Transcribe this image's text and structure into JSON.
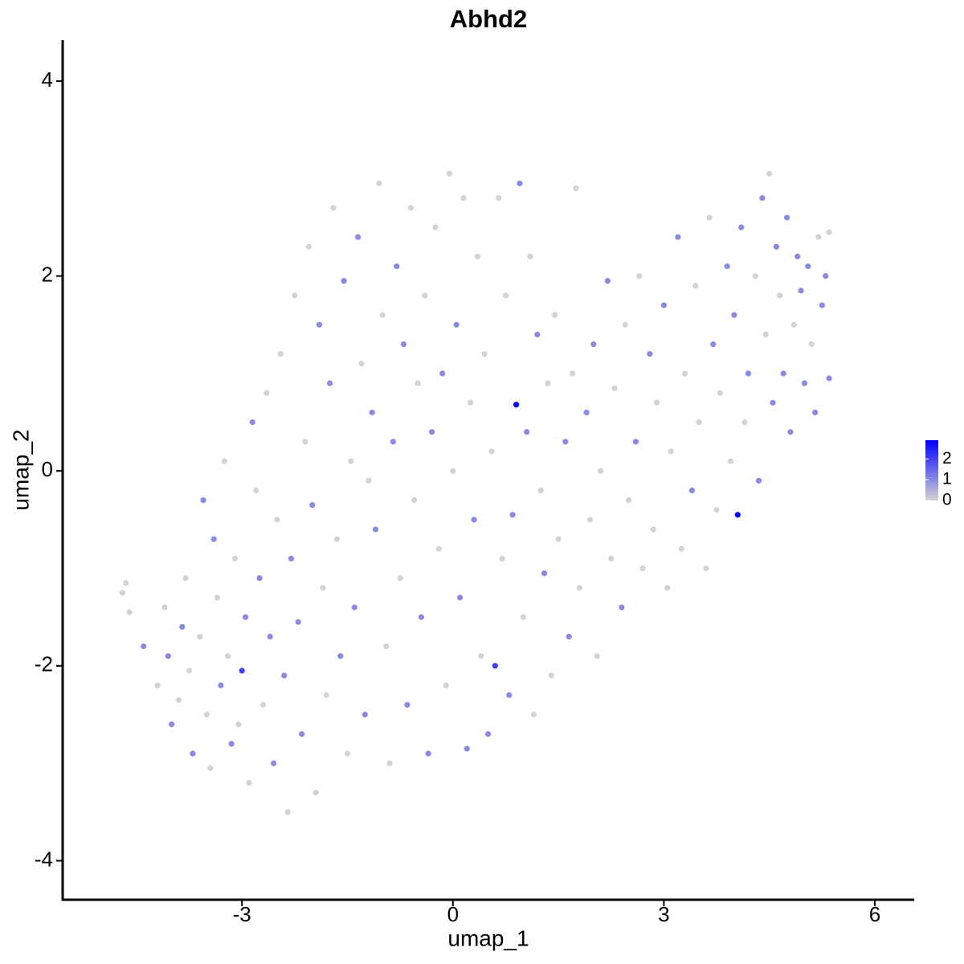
{
  "chart_data": {
    "type": "scatter",
    "title": "Abhd2",
    "xlabel": "umap_1",
    "ylabel": "umap_2",
    "xlim": [
      -5.55,
      6.56
    ],
    "ylim": [
      -4.4,
      4.42
    ],
    "xticks": [
      -3,
      0,
      3,
      6
    ],
    "yticks": [
      -4,
      -2,
      0,
      2,
      4
    ],
    "color_low": "#d3d3d3",
    "color_high": "#0000ff",
    "color_lim": [
      0,
      2.9
    ],
    "color_ticks": [
      0,
      1,
      2
    ],
    "x": [
      -4.7,
      -4.65,
      -4.6,
      -4.4,
      -4.2,
      -4.1,
      -4.05,
      -4.0,
      -3.9,
      -3.85,
      -3.8,
      -3.75,
      -3.7,
      -3.6,
      -3.55,
      -3.5,
      -3.45,
      -3.4,
      -3.35,
      -3.3,
      -3.25,
      -3.2,
      -3.15,
      -3.1,
      -3.05,
      -3.0,
      -2.95,
      -2.9,
      -2.85,
      -2.8,
      -2.75,
      -2.7,
      -2.65,
      -2.6,
      -2.55,
      -2.5,
      -2.45,
      -2.4,
      -2.35,
      -2.3,
      -2.25,
      -2.2,
      -2.15,
      -2.1,
      -2.05,
      -2.0,
      -1.95,
      -1.9,
      -1.85,
      -1.8,
      -1.75,
      -1.7,
      -1.65,
      -1.6,
      -1.55,
      -1.5,
      -1.45,
      -1.4,
      -1.35,
      -1.3,
      -1.25,
      -1.2,
      -1.15,
      -1.1,
      -1.05,
      -1.0,
      -0.95,
      -0.9,
      -0.85,
      -0.8,
      -0.75,
      -0.7,
      -0.65,
      -0.6,
      -0.55,
      -0.5,
      -0.45,
      -0.4,
      -0.35,
      -0.3,
      -0.25,
      -0.2,
      -0.15,
      -0.1,
      -0.05,
      0.0,
      0.05,
      0.1,
      0.15,
      0.2,
      0.25,
      0.3,
      0.35,
      0.4,
      0.45,
      0.5,
      0.55,
      0.6,
      0.65,
      0.7,
      0.75,
      0.8,
      0.85,
      0.9,
      0.95,
      1.0,
      1.05,
      1.1,
      1.15,
      1.2,
      1.25,
      1.3,
      1.35,
      1.4,
      1.45,
      1.5,
      1.6,
      1.65,
      1.7,
      1.75,
      1.8,
      1.9,
      1.95,
      2.0,
      2.05,
      2.1,
      2.2,
      2.25,
      2.3,
      2.4,
      2.45,
      2.5,
      2.6,
      2.65,
      2.7,
      2.8,
      2.85,
      2.9,
      3.0,
      3.05,
      3.1,
      3.2,
      3.25,
      3.3,
      3.4,
      3.45,
      3.5,
      3.6,
      3.65,
      3.7,
      3.75,
      3.8,
      3.9,
      3.95,
      4.0,
      4.05,
      4.1,
      4.15,
      4.2,
      4.3,
      4.35,
      4.4,
      4.45,
      4.5,
      4.55,
      4.6,
      4.65,
      4.7,
      4.75,
      4.8,
      4.85,
      4.9,
      4.95,
      5.0,
      5.05,
      5.1,
      5.15,
      5.2,
      5.25,
      5.3,
      5.35,
      5.35
    ],
    "y": [
      -1.25,
      -1.15,
      -1.45,
      -1.8,
      -2.2,
      -1.4,
      -1.9,
      -2.6,
      -2.35,
      -1.6,
      -1.1,
      -2.05,
      -2.9,
      -1.7,
      -0.3,
      -2.5,
      -3.05,
      -0.7,
      -1.3,
      -2.2,
      0.1,
      -1.9,
      -2.8,
      -0.9,
      -2.6,
      -2.05,
      -1.5,
      -3.2,
      0.5,
      -0.2,
      -1.1,
      -2.4,
      0.8,
      -1.7,
      -3.0,
      -0.5,
      1.2,
      -2.1,
      -3.5,
      -0.9,
      1.8,
      -1.55,
      -2.7,
      0.3,
      2.3,
      -0.35,
      -3.3,
      1.5,
      -1.2,
      -2.3,
      0.9,
      2.7,
      -0.7,
      -1.9,
      1.95,
      -2.9,
      0.1,
      -1.4,
      2.4,
      1.1,
      -2.5,
      -0.1,
      0.6,
      -0.6,
      2.95,
      1.6,
      -1.8,
      -3.0,
      0.3,
      2.1,
      -1.1,
      1.3,
      -2.4,
      2.7,
      -0.3,
      0.9,
      -1.5,
      1.8,
      -2.9,
      0.4,
      2.5,
      -0.8,
      1.0,
      -2.2,
      3.05,
      0.0,
      1.5,
      -1.3,
      2.8,
      -2.85,
      0.7,
      -0.5,
      2.2,
      -1.9,
      1.2,
      -2.7,
      0.2,
      -2.0,
      2.8,
      -0.9,
      1.8,
      -2.3,
      -0.45,
      0.68,
      2.95,
      -1.5,
      0.4,
      2.2,
      -2.5,
      1.4,
      -0.2,
      -1.05,
      0.9,
      -2.1,
      1.6,
      -0.7,
      0.3,
      -1.7,
      1.0,
      2.9,
      -1.2,
      0.6,
      -0.5,
      1.3,
      -1.9,
      0.0,
      1.95,
      -0.9,
      0.85,
      -1.4,
      1.5,
      -0.3,
      0.3,
      2.0,
      -1.0,
      1.2,
      -0.6,
      0.7,
      1.7,
      -1.2,
      0.2,
      2.4,
      -0.8,
      1.0,
      -0.2,
      1.9,
      0.5,
      -1.0,
      2.6,
      1.3,
      -0.4,
      0.8,
      2.1,
      0.1,
      1.6,
      -0.45,
      2.5,
      0.5,
      1.0,
      2.0,
      -0.1,
      2.8,
      1.4,
      3.05,
      0.7,
      2.3,
      1.8,
      1.0,
      2.6,
      0.4,
      1.5,
      2.2,
      1.85,
      0.9,
      2.1,
      1.3,
      0.6,
      2.4,
      1.7,
      2.0,
      0.95,
      2.45
    ],
    "values": [
      0,
      0,
      0,
      1,
      0,
      0,
      1,
      1,
      0,
      1,
      0,
      0,
      1,
      0,
      1,
      0,
      0,
      1,
      0,
      1,
      0,
      0,
      1,
      0,
      0,
      2,
      1,
      0,
      1,
      0,
      1,
      0,
      0,
      1,
      1,
      0,
      0,
      1,
      0,
      1,
      0,
      1,
      1,
      0,
      0,
      1,
      0,
      1,
      0,
      0,
      1,
      0,
      0,
      1,
      1,
      0,
      0,
      1,
      1,
      0,
      1,
      0,
      1,
      1,
      0,
      0,
      0,
      0,
      1,
      1,
      0,
      1,
      1,
      0,
      0,
      0,
      1,
      0,
      1,
      1,
      0,
      0,
      1,
      0,
      0,
      0,
      1,
      1,
      0,
      1,
      0,
      1,
      0,
      0,
      0,
      1,
      0,
      2,
      0,
      0,
      0,
      1,
      1,
      2.9,
      1,
      0,
      1,
      0,
      0,
      1,
      0,
      1,
      0,
      0,
      0,
      0,
      1,
      1,
      0,
      0,
      0,
      1,
      0,
      1,
      0,
      0,
      1,
      0,
      0,
      1,
      0,
      0,
      1,
      0,
      0,
      1,
      0,
      0,
      1,
      0,
      0,
      1,
      0,
      0,
      1,
      0,
      0,
      0,
      0,
      1,
      0,
      0,
      1,
      0,
      1,
      2.9,
      1,
      0,
      1,
      0,
      1,
      1,
      0,
      0,
      1,
      1,
      0,
      1,
      1,
      1,
      0,
      1,
      1,
      1,
      1,
      0,
      1,
      0,
      1,
      1,
      1,
      0
    ]
  }
}
